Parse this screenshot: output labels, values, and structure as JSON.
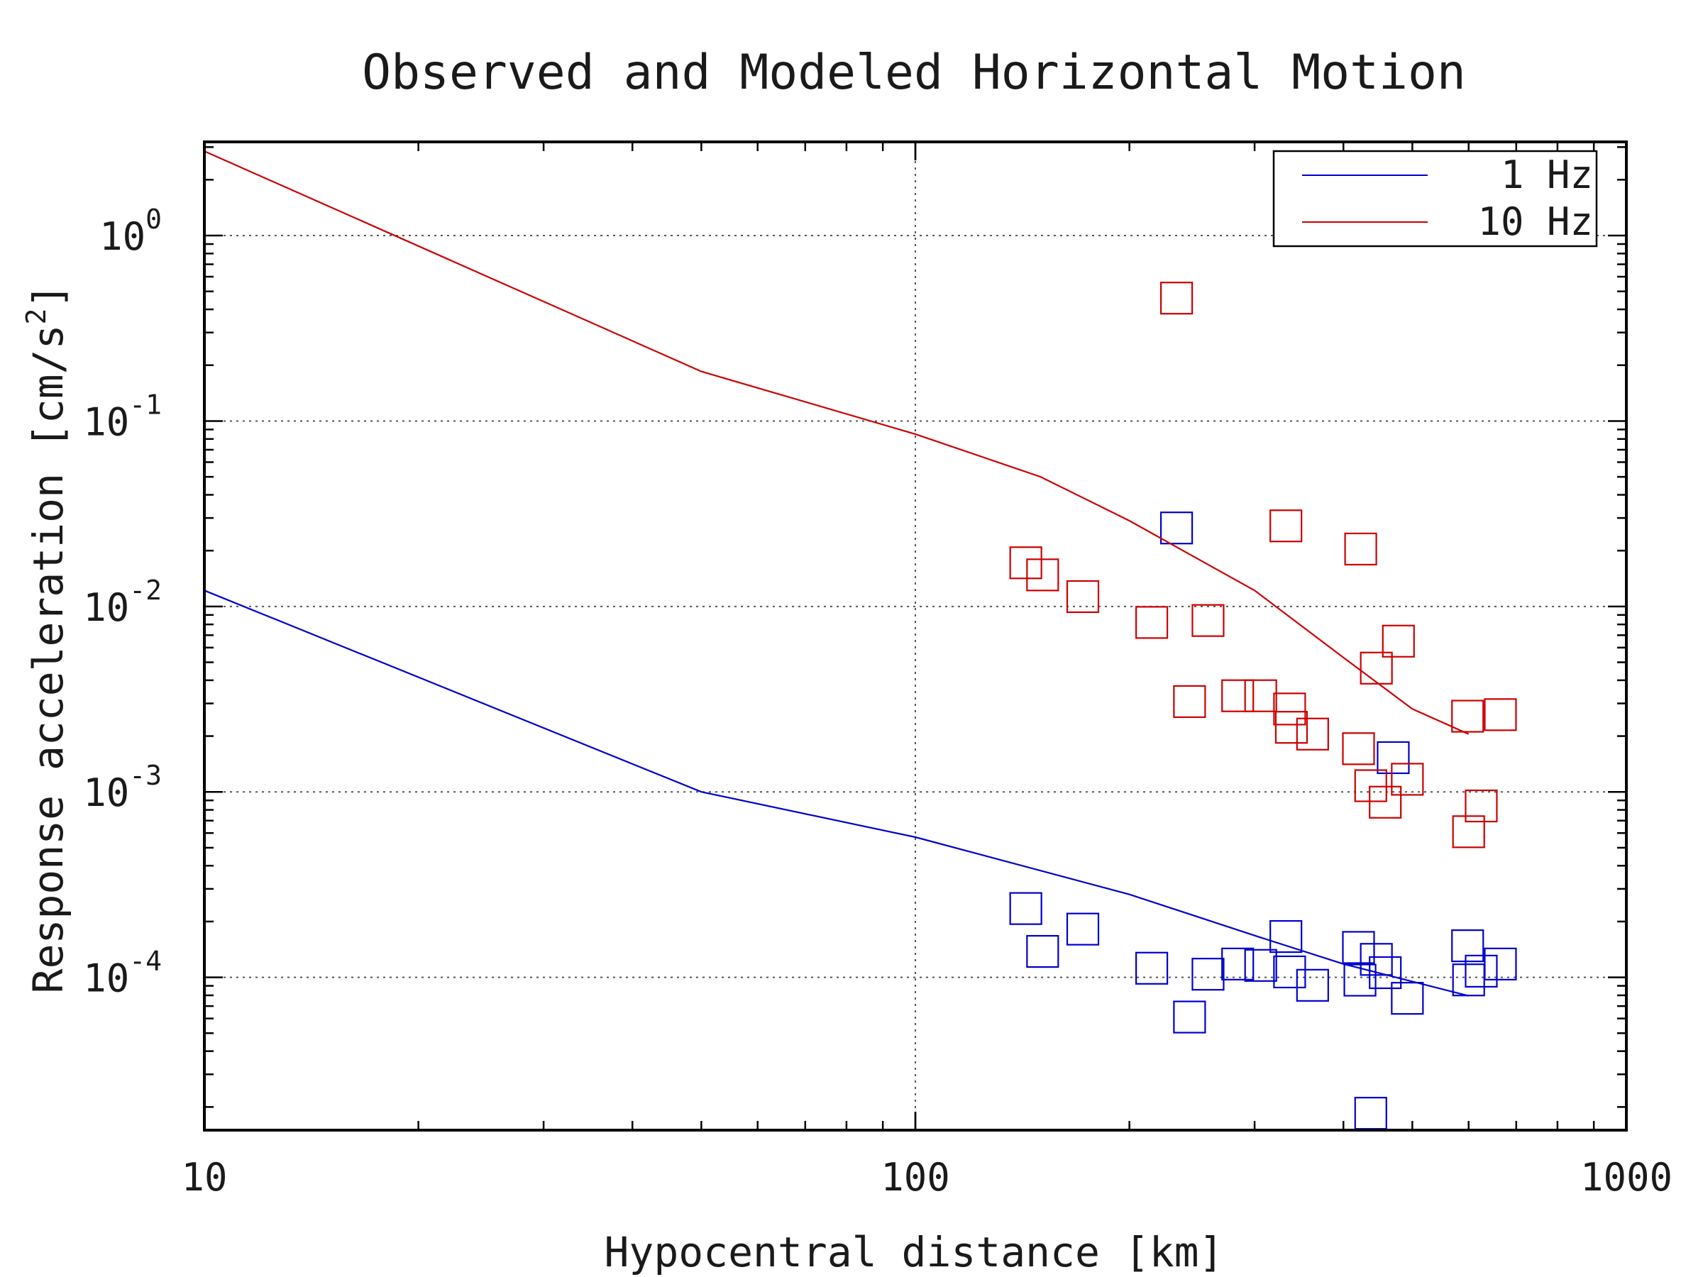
{
  "chart_data": {
    "type": "scatter",
    "title": "Observed and Modeled Horizontal Motion",
    "xlabel": "Hypocentral distance [km]",
    "ylabel": "Response acceleration [cm/s",
    "ylabel_exponent": "2",
    "ylabel_suffix": "]",
    "x_scale": "log",
    "y_scale": "log",
    "xlim": [
      10,
      1000
    ],
    "ylim": [
      1.5e-05,
      3.2
    ],
    "x_ticks": [
      {
        "value": 10,
        "label": "10"
      },
      {
        "value": 100,
        "label": "100"
      },
      {
        "value": 1000,
        "label": "1000"
      }
    ],
    "y_ticks": [
      {
        "value": 1,
        "base": "10",
        "exponent": "0"
      },
      {
        "value": 0.1,
        "base": "10",
        "exponent": "-1"
      },
      {
        "value": 0.01,
        "base": "10",
        "exponent": "-2"
      },
      {
        "value": 0.001,
        "base": "10",
        "exponent": "-3"
      },
      {
        "value": 0.0001,
        "base": "10",
        "exponent": "-4"
      }
    ],
    "grid": true,
    "legend_position": "top-right",
    "series": [
      {
        "name": "1 Hz",
        "color": "#0000cc",
        "model_line": [
          [
            10,
            0.0122
          ],
          [
            50,
            0.001
          ],
          [
            100,
            0.00057
          ],
          [
            200,
            0.00028
          ],
          [
            300,
            0.000168
          ],
          [
            400,
            0.000118
          ],
          [
            600,
            7.95e-05
          ]
        ],
        "observed": [
          [
            143,
            0.000235
          ],
          [
            151,
            0.000138
          ],
          [
            172,
            0.000182
          ],
          [
            215,
            0.000112
          ],
          [
            243,
            6.11e-05
          ],
          [
            258,
            0.000104
          ],
          [
            284,
            0.000118
          ],
          [
            306,
            0.000116
          ],
          [
            332,
            0.000166
          ],
          [
            336,
            0.000107
          ],
          [
            362,
            9.06e-05
          ],
          [
            420,
            0.000145
          ],
          [
            422,
            9.66e-05
          ],
          [
            437,
            1.85e-05
          ],
          [
            445,
            0.000125
          ],
          [
            458,
            0.000106
          ],
          [
            492,
            7.71e-05
          ],
          [
            598,
            0.000148
          ],
          [
            600,
            9.69e-05
          ],
          [
            625,
            0.000108
          ],
          [
            665,
            0.000118
          ],
          [
            233,
            0.0265
          ],
          [
            470,
            0.00153
          ]
        ]
      },
      {
        "name": "10 Hz",
        "color": "#cc0000",
        "model_line": [
          [
            10,
            2.85
          ],
          [
            50,
            0.185
          ],
          [
            100,
            0.085
          ],
          [
            150,
            0.05
          ],
          [
            200,
            0.029
          ],
          [
            300,
            0.0122
          ],
          [
            400,
            0.0053
          ],
          [
            500,
            0.0028
          ],
          [
            600,
            0.00205
          ]
        ],
        "observed": [
          [
            233,
            0.46
          ],
          [
            143,
            0.0172
          ],
          [
            151,
            0.0148
          ],
          [
            172,
            0.0113
          ],
          [
            215,
            0.0082
          ],
          [
            243,
            0.00307
          ],
          [
            258,
            0.0084
          ],
          [
            284,
            0.0033
          ],
          [
            306,
            0.0033
          ],
          [
            332,
            0.0272
          ],
          [
            336,
            0.0028
          ],
          [
            338,
            0.00223
          ],
          [
            362,
            0.00205
          ],
          [
            420,
            0.00171
          ],
          [
            423,
            0.0204
          ],
          [
            437,
            0.00108
          ],
          [
            445,
            0.00465
          ],
          [
            458,
            0.00088
          ],
          [
            478,
            0.0065
          ],
          [
            492,
            0.00117
          ],
          [
            598,
            0.00256
          ],
          [
            600,
            0.00061
          ],
          [
            625,
            0.00084
          ],
          [
            665,
            0.00261
          ]
        ]
      }
    ]
  }
}
